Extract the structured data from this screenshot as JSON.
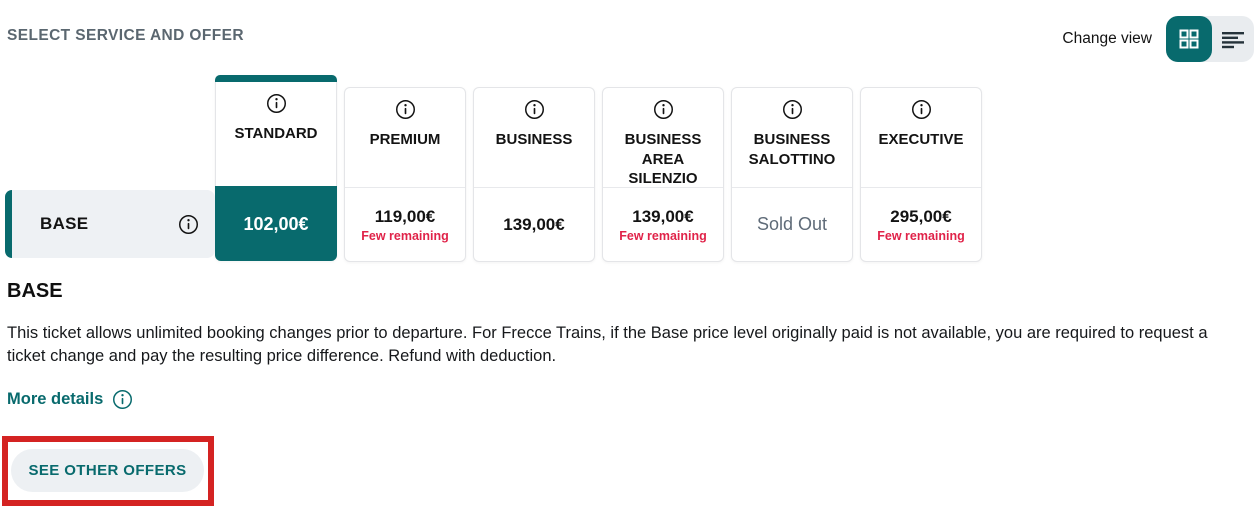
{
  "header": {
    "title": "SELECT SERVICE AND OFFER",
    "change_view_label": "Change view",
    "view_toggle": {
      "active_view": "grid",
      "grid_icon": "grid-view-icon",
      "list_icon": "list-view-icon"
    }
  },
  "colors": {
    "teal_accent": "#086a6d",
    "availability_red": "#e02349",
    "annotation_red": "#d42322",
    "sold_out_gray": "#5f6b78",
    "title_gray": "#5b6770"
  },
  "fare_table": {
    "row_label": "BASE",
    "columns": [
      {
        "label": "STANDARD",
        "price": "102,00€",
        "note": "",
        "status": "",
        "selected": true
      },
      {
        "label": "PREMIUM",
        "price": "119,00€",
        "note": "Few remaining",
        "status": "",
        "selected": false
      },
      {
        "label": "BUSINESS",
        "price": "139,00€",
        "note": "",
        "status": "",
        "selected": false
      },
      {
        "label": "BUSINESS AREA SILENZIO",
        "price": "139,00€",
        "note": "Few remaining",
        "status": "",
        "selected": false
      },
      {
        "label": "BUSINESS SALOTTINO",
        "price": "",
        "note": "",
        "status": "Sold Out",
        "selected": false
      },
      {
        "label": "EXECUTIVE",
        "price": "295,00€",
        "note": "Few remaining",
        "status": "",
        "selected": false
      }
    ]
  },
  "details": {
    "heading": "BASE",
    "description": "This ticket allows unlimited booking changes prior to departure. For Frecce Trains, if the Base price level originally paid is not available, you are required to request a ticket change and pay the resulting price difference. Refund with deduction.",
    "more_details_label": "More details"
  },
  "footer": {
    "see_other_offers_label": "SEE OTHER OFFERS"
  }
}
